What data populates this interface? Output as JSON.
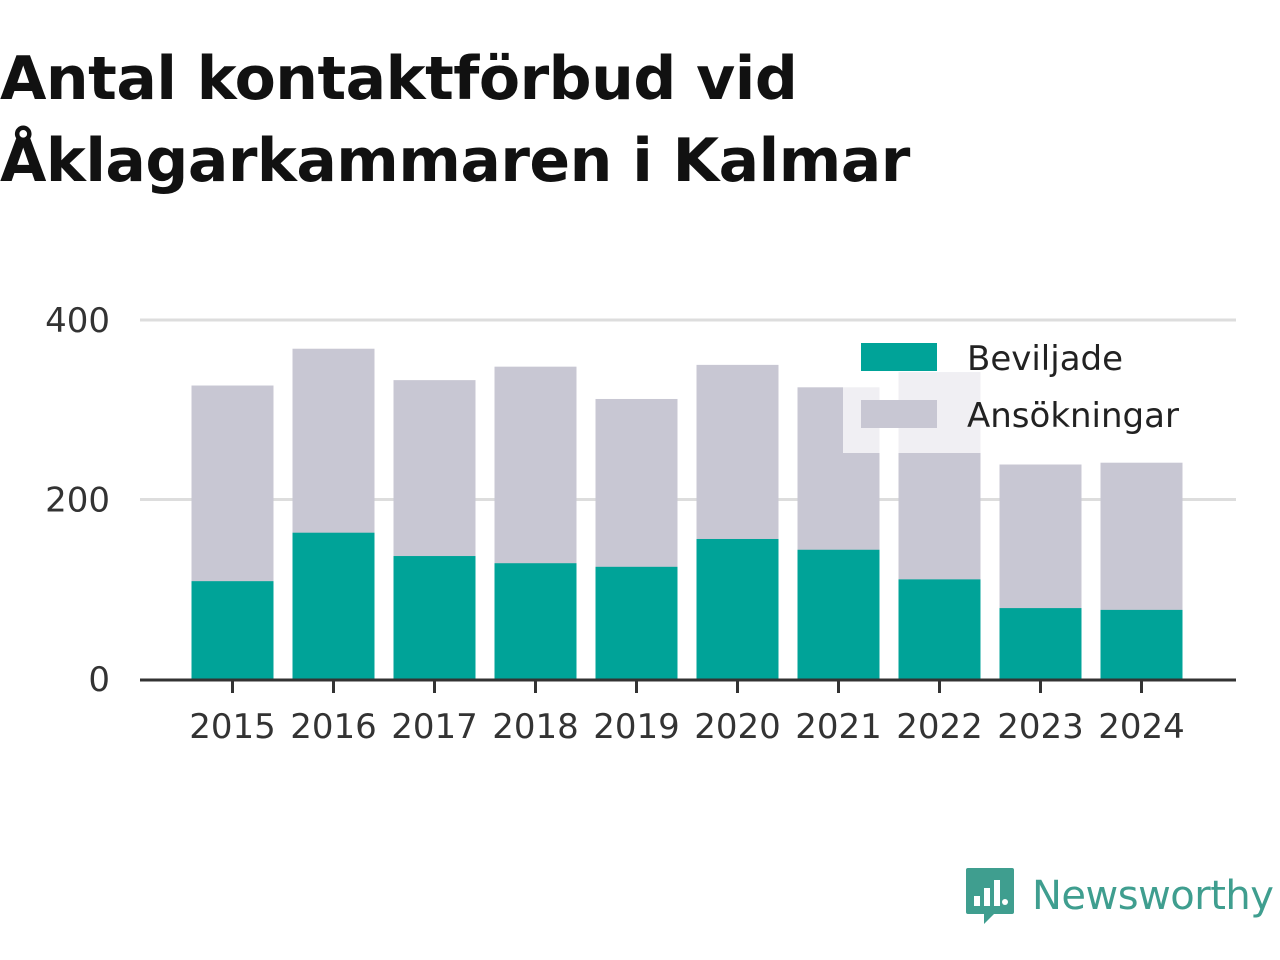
{
  "title_lines": [
    "Antal kontaktförbud vid",
    "Åklagarkammaren i Kalmar"
  ],
  "brand": {
    "name": "Newsworthy",
    "icon": "newsworthy-logo-icon",
    "color": "#3f9e8f"
  },
  "chart_data": {
    "type": "bar",
    "stacking": "overlay",
    "categories": [
      "2015",
      "2016",
      "2017",
      "2018",
      "2019",
      "2020",
      "2021",
      "2022",
      "2023",
      "2024"
    ],
    "series": [
      {
        "name": "Ansökningar",
        "color": "#c8c7d3",
        "values": [
          327,
          368,
          333,
          348,
          312,
          350,
          325,
          342,
          239,
          241
        ]
      },
      {
        "name": "Beviljade",
        "color": "#00a398",
        "values": [
          109,
          163,
          137,
          129,
          125,
          156,
          144,
          111,
          79,
          77
        ]
      }
    ],
    "legend": [
      "Beviljade",
      "Ansökningar"
    ],
    "legend_position": "top-right",
    "yticks": [
      "0",
      "200",
      "400"
    ],
    "ylim": [
      0,
      400
    ],
    "grid": true,
    "title": "",
    "xlabel": "",
    "ylabel": ""
  }
}
